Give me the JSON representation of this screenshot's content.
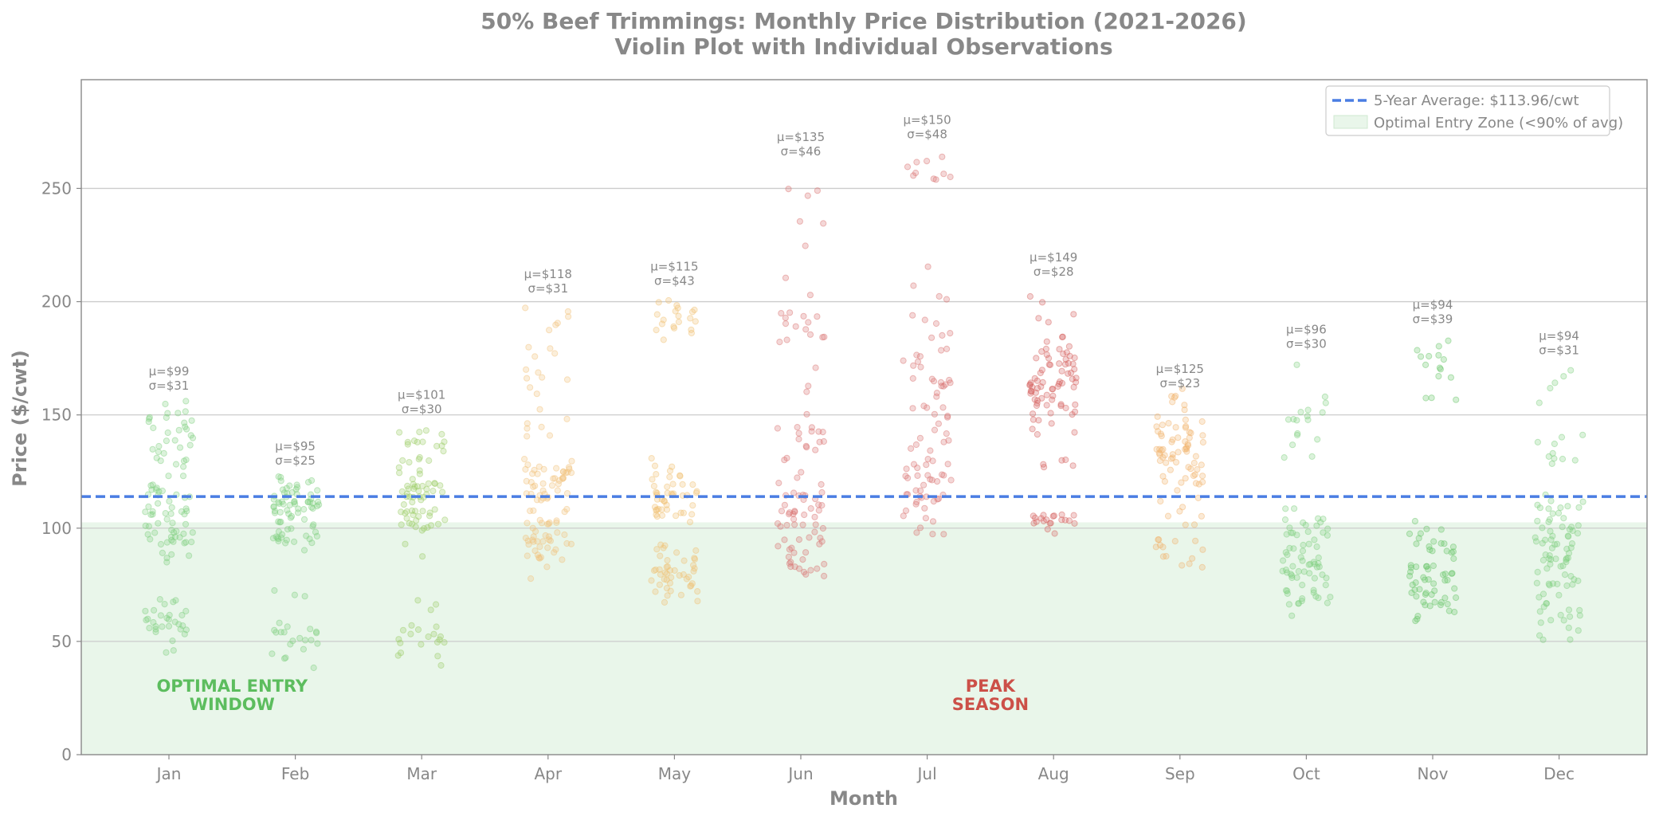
{
  "chart_data": {
    "type": "scatter",
    "title": "50% Beef Trimmings: Monthly Price Distribution (2021-2026)",
    "subtitle": "Violin Plot with Individual Observations",
    "xlabel": "Month",
    "ylabel": "Price ($/cwt)",
    "ylim": [
      0,
      298
    ],
    "yticks": [
      0,
      50,
      100,
      150,
      200,
      250
    ],
    "grid": true,
    "categories": [
      "Jan",
      "Feb",
      "Mar",
      "Apr",
      "May",
      "Jun",
      "Jul",
      "Aug",
      "Sep",
      "Oct",
      "Nov",
      "Dec"
    ],
    "average": {
      "value": 113.96,
      "label": "5-Year Average: $113.96/cwt",
      "color": "#4a7de3"
    },
    "optimal_zone": {
      "max": 102.56,
      "label": "Optimal Entry Zone (<90% of avg)",
      "color": "#e9f6ea"
    },
    "legend_position": "top-right",
    "month_stats": [
      {
        "month": "Jan",
        "mean_label": "μ=$99",
        "sd_label": "σ=$31",
        "mean": 99,
        "sd": 31,
        "color": "#7fcf7f"
      },
      {
        "month": "Feb",
        "mean_label": "μ=$95",
        "sd_label": "σ=$25",
        "mean": 95,
        "sd": 25,
        "color": "#7fcf7f"
      },
      {
        "month": "Mar",
        "mean_label": "μ=$101",
        "sd_label": "σ=$30",
        "mean": 101,
        "sd": 30,
        "color": "#9ccc65"
      },
      {
        "month": "Apr",
        "mean_label": "μ=$118",
        "sd_label": "σ=$31",
        "mean": 118,
        "sd": 31,
        "color": "#f2c27a"
      },
      {
        "month": "May",
        "mean_label": "μ=$115",
        "sd_label": "σ=$43",
        "mean": 115,
        "sd": 43,
        "color": "#f0c070"
      },
      {
        "month": "Jun",
        "mean_label": "μ=$135",
        "sd_label": "σ=$46",
        "mean": 135,
        "sd": 46,
        "color": "#d9716e"
      },
      {
        "month": "Jul",
        "mean_label": "μ=$150",
        "sd_label": "σ=$48",
        "mean": 150,
        "sd": 48,
        "color": "#d9716e"
      },
      {
        "month": "Aug",
        "mean_label": "μ=$149",
        "sd_label": "σ=$28",
        "mean": 149,
        "sd": 28,
        "color": "#d45f5c"
      },
      {
        "month": "Sep",
        "mean_label": "μ=$125",
        "sd_label": "σ=$23",
        "mean": 125,
        "sd": 23,
        "color": "#f2b26a"
      },
      {
        "month": "Oct",
        "mean_label": "μ=$96",
        "sd_label": "σ=$30",
        "mean": 96,
        "sd": 30,
        "color": "#7fcf7f"
      },
      {
        "month": "Nov",
        "mean_label": "μ=$94",
        "sd_label": "σ=$39",
        "mean": 94,
        "sd": 39,
        "color": "#66c466"
      },
      {
        "month": "Dec",
        "mean_label": "μ=$94",
        "sd_label": "σ=$31",
        "mean": 94,
        "sd": 31,
        "color": "#7fcf7f"
      }
    ],
    "clusters": [
      {
        "month": "Jan",
        "parts": [
          [
            115,
            20,
            55
          ],
          [
            147,
            6,
            16
          ],
          [
            95,
            7,
            18
          ],
          [
            57,
            8,
            30
          ]
        ]
      },
      {
        "month": "Feb",
        "parts": [
          [
            110,
            9,
            55
          ],
          [
            97,
            5,
            20
          ],
          [
            50,
            6,
            20
          ],
          [
            70,
            3,
            3
          ]
        ]
      },
      {
        "month": "Mar",
        "parts": [
          [
            112,
            14,
            60
          ],
          [
            138,
            5,
            14
          ],
          [
            50,
            6,
            18
          ],
          [
            64,
            4,
            3
          ]
        ]
      },
      {
        "month": "Apr",
        "parts": [
          [
            120,
            8,
            40
          ],
          [
            95,
            10,
            45
          ],
          [
            170,
            14,
            12
          ],
          [
            190,
            6,
            6
          ],
          [
            145,
            8,
            6
          ]
        ]
      },
      {
        "month": "May",
        "parts": [
          [
            112,
            7,
            40
          ],
          [
            80,
            9,
            45
          ],
          [
            192,
            7,
            20
          ],
          [
            126,
            4,
            5
          ]
        ]
      },
      {
        "month": "Jun",
        "parts": [
          [
            110,
            14,
            40
          ],
          [
            87,
            8,
            20
          ],
          [
            188,
            8,
            16
          ],
          [
            140,
            8,
            14
          ],
          [
            240,
            14,
            7
          ],
          [
            165,
            5,
            2
          ]
        ]
      },
      {
        "month": "Jul",
        "parts": [
          [
            120,
            20,
            40
          ],
          [
            160,
            22,
            35
          ],
          [
            210,
            16,
            6
          ],
          [
            258,
            6,
            10
          ],
          [
            100,
            4,
            4
          ]
        ]
      },
      {
        "month": "Aug",
        "parts": [
          [
            165,
            16,
            75
          ],
          [
            103,
            3,
            20
          ],
          [
            128,
            5,
            5
          ],
          [
            200,
            4,
            3
          ]
        ]
      },
      {
        "month": "Sep",
        "parts": [
          [
            135,
            16,
            70
          ],
          [
            90,
            6,
            14
          ],
          [
            103,
            4,
            5
          ]
        ]
      },
      {
        "month": "Oct",
        "parts": [
          [
            80,
            12,
            55
          ],
          [
            100,
            5,
            14
          ],
          [
            145,
            8,
            16
          ],
          [
            172,
            1,
            1
          ]
        ]
      },
      {
        "month": "Nov",
        "parts": [
          [
            75,
            12,
            50
          ],
          [
            95,
            4,
            12
          ],
          [
            175,
            7,
            12
          ],
          [
            158,
            2,
            3
          ]
        ]
      },
      {
        "month": "Dec",
        "parts": [
          [
            88,
            16,
            70
          ],
          [
            60,
            9,
            14
          ],
          [
            135,
            8,
            10
          ],
          [
            160,
            8,
            5
          ]
        ]
      }
    ],
    "annotations": [
      {
        "text_lines": [
          "OPTIMAL ENTRY",
          "WINDOW"
        ],
        "month": "Jan",
        "x_offset": 0.5,
        "y": 25,
        "color": "#5cbd5e"
      },
      {
        "text_lines": [
          "PEAK",
          "SEASON"
        ],
        "month": "Jul",
        "x_offset": 0.5,
        "y": 25,
        "color": "#cc5048"
      }
    ]
  }
}
